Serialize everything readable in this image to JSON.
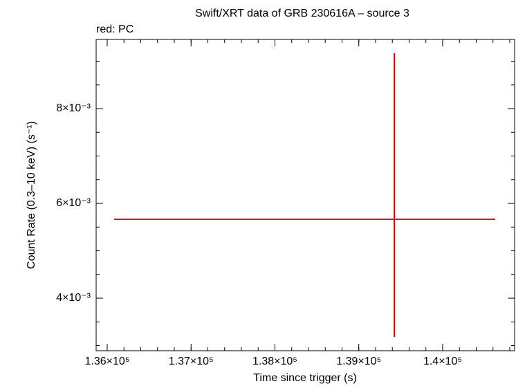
{
  "chart_data": {
    "type": "errorbar",
    "title": "Swift/XRT data of GRB 230616A – source 3",
    "subtitle": "red: PC",
    "xlabel": "Time since trigger (s)",
    "ylabel": "Count Rate (0.3–10 keV) (s⁻¹)",
    "series": [
      {
        "name": "PC",
        "color": "#e00000",
        "x": [
          139423
        ],
        "values": [
          0.005664
        ],
        "xerr_minus": [
          3341
        ],
        "xerr_plus": [
          1204
        ],
        "yerr_minus": [
          0.002482
        ],
        "yerr_plus": [
          0.003504
        ]
      }
    ],
    "xlim": [
      135868,
      140858
    ],
    "xticks": [
      {
        "value": 136000,
        "label": "1.36×10⁵"
      },
      {
        "value": 137000,
        "label": "1.37×10⁵"
      },
      {
        "value": 138000,
        "label": "1.38×10⁵"
      },
      {
        "value": 139000,
        "label": "1.39×10⁵"
      },
      {
        "value": 140000,
        "label": "1.4×10⁵"
      }
    ],
    "ylim": [
      0.002891,
      0.00946
    ],
    "yticks": [
      {
        "value": 0.004,
        "label": "4×10⁻³"
      },
      {
        "value": 0.006,
        "label": "6×10⁻³"
      },
      {
        "value": 0.008,
        "label": "8×10⁻³"
      }
    ]
  }
}
